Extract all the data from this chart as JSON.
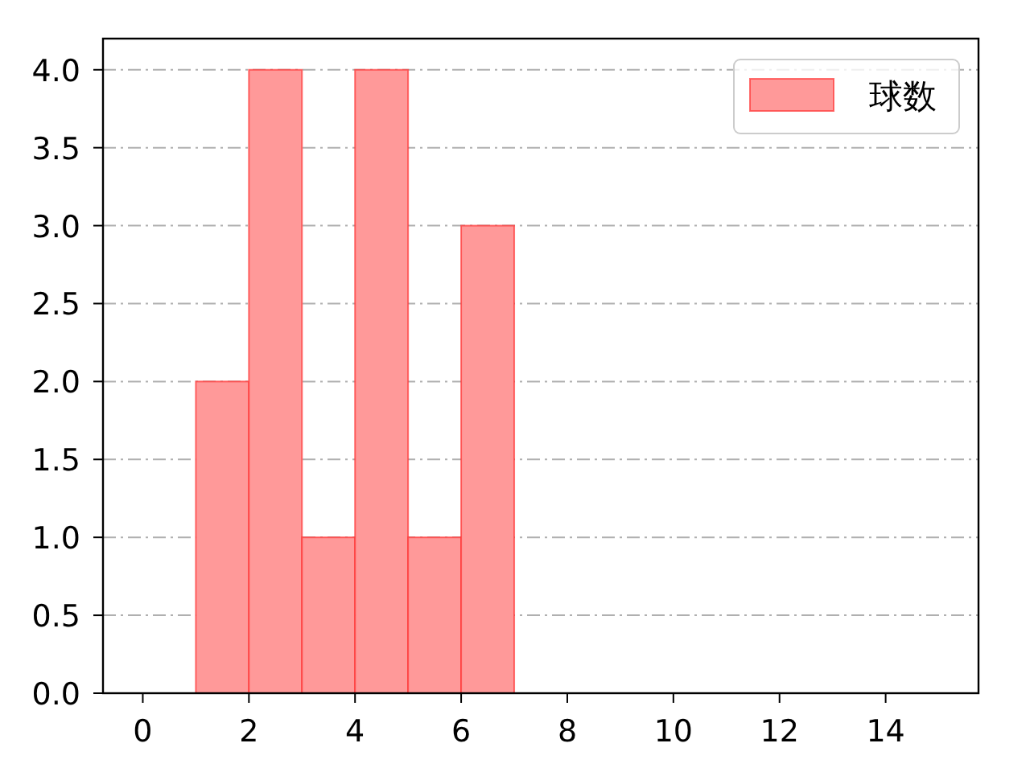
{
  "chart_data": {
    "type": "histogram",
    "bins": [
      1,
      2,
      3,
      4,
      5,
      6,
      7
    ],
    "series": [
      {
        "name": "球数",
        "color": "#ff9999",
        "values": [
          2,
          4,
          1,
          4,
          1,
          3
        ]
      }
    ],
    "xlim": [
      -0.75,
      15.75
    ],
    "xticks": [
      0,
      2,
      4,
      6,
      8,
      10,
      12,
      14
    ],
    "ylim": [
      0,
      4.2
    ],
    "yticks": [
      {
        "value": 0,
        "label": "0.0"
      },
      {
        "value": 0.5,
        "label": "0.5"
      },
      {
        "value": 1,
        "label": "1.0"
      },
      {
        "value": 1.5,
        "label": "1.5"
      },
      {
        "value": 2,
        "label": "2.0"
      },
      {
        "value": 2.5,
        "label": "2.5"
      },
      {
        "value": 3,
        "label": "3.0"
      },
      {
        "value": 3.5,
        "label": "3.5"
      },
      {
        "value": 4,
        "label": "4.0"
      }
    ],
    "grid": "y",
    "legend": "top right"
  }
}
